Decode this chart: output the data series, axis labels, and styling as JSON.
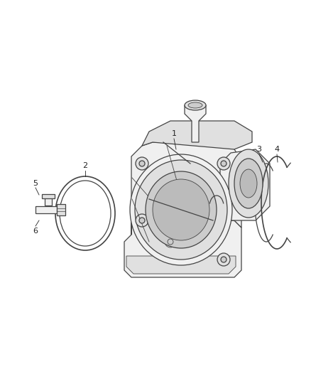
{
  "background_color": "#ffffff",
  "line_color": "#444444",
  "label_color": "#222222",
  "fig_width": 4.38,
  "fig_height": 5.33,
  "dpi": 100,
  "lw_main": 0.9,
  "lw_thin": 0.6,
  "label_fs": 8
}
